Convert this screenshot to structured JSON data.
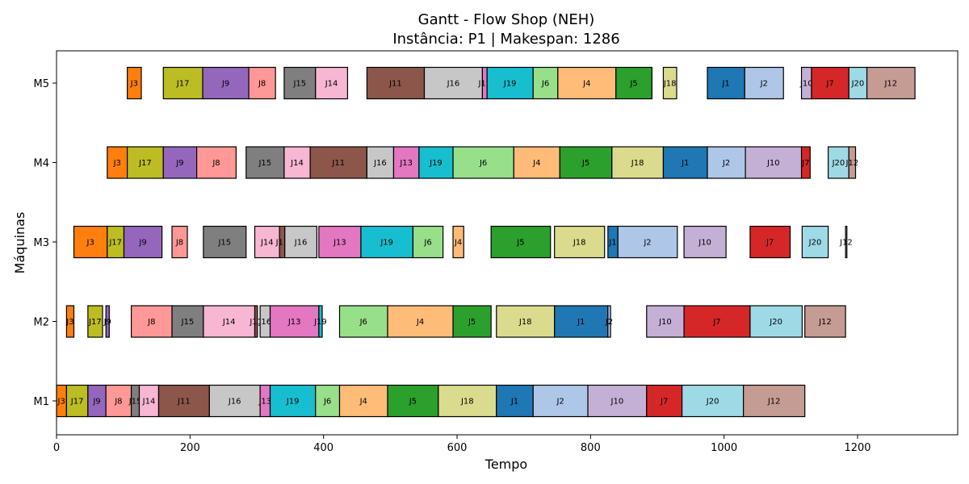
{
  "chart_data": {
    "type": "gantt",
    "title": "Gantt - Flow Shop (NEH)",
    "subtitle": "Instância: P1 | Makespan: 1286",
    "xlabel": "Tempo",
    "ylabel": "Máquinas",
    "xlim": [
      0,
      1350
    ],
    "x_ticks": [
      0,
      200,
      400,
      600,
      800,
      1000,
      1200
    ],
    "machines": [
      "M1",
      "M2",
      "M3",
      "M4",
      "M5"
    ],
    "job_colors": {
      "J1": "#1f77b4",
      "J2": "#aec7e8",
      "J3": "#ff7f0e",
      "J4": "#ffbb78",
      "J5": "#2ca02c",
      "J6": "#98df8a",
      "J7": "#d62728",
      "J8": "#ff9896",
      "J9": "#9467bd",
      "J10": "#c5b0d5",
      "J11": "#8c564b",
      "J12": "#c49c94",
      "J13": "#e377c2",
      "J14": "#f7b6d2",
      "J15": "#7f7f7f",
      "J16": "#c7c7c7",
      "J17": "#bcbd22",
      "J18": "#dbdb8d",
      "J19": "#17becf",
      "J20": "#9edae5"
    },
    "tasks": {
      "M1": [
        {
          "job": "J3",
          "start": 0,
          "end": 15
        },
        {
          "job": "J17",
          "start": 15,
          "end": 47
        },
        {
          "job": "J9",
          "start": 47,
          "end": 74
        },
        {
          "job": "J8",
          "start": 74,
          "end": 112
        },
        {
          "job": "J15",
          "start": 112,
          "end": 124
        },
        {
          "job": "J14",
          "start": 124,
          "end": 153
        },
        {
          "job": "J11",
          "start": 153,
          "end": 229
        },
        {
          "job": "J16",
          "start": 229,
          "end": 305
        },
        {
          "job": "J13",
          "start": 305,
          "end": 320
        },
        {
          "job": "J19",
          "start": 320,
          "end": 388
        },
        {
          "job": "J6",
          "start": 388,
          "end": 424
        },
        {
          "job": "J4",
          "start": 424,
          "end": 496
        },
        {
          "job": "J5",
          "start": 496,
          "end": 572
        },
        {
          "job": "J18",
          "start": 572,
          "end": 659
        },
        {
          "job": "J1",
          "start": 659,
          "end": 714
        },
        {
          "job": "J2",
          "start": 714,
          "end": 796
        },
        {
          "job": "J10",
          "start": 796,
          "end": 884
        },
        {
          "job": "J7",
          "start": 884,
          "end": 937
        },
        {
          "job": "J20",
          "start": 937,
          "end": 1029
        },
        {
          "job": "J12",
          "start": 1029,
          "end": 1121
        }
      ],
      "M2": [
        {
          "job": "J3",
          "start": 15,
          "end": 26
        },
        {
          "job": "J17",
          "start": 47,
          "end": 69
        },
        {
          "job": "J9",
          "start": 74,
          "end": 79
        },
        {
          "job": "J8",
          "start": 112,
          "end": 173
        },
        {
          "job": "J15",
          "start": 173,
          "end": 220
        },
        {
          "job": "J14",
          "start": 220,
          "end": 297
        },
        {
          "job": "J11",
          "start": 297,
          "end": 301
        },
        {
          "job": "J16",
          "start": 305,
          "end": 320
        },
        {
          "job": "J13",
          "start": 320,
          "end": 393
        },
        {
          "job": "J19",
          "start": 393,
          "end": 398
        },
        {
          "job": "J6",
          "start": 424,
          "end": 496
        },
        {
          "job": "J4",
          "start": 496,
          "end": 594
        },
        {
          "job": "J5",
          "start": 594,
          "end": 651
        },
        {
          "job": "J18",
          "start": 659,
          "end": 746
        },
        {
          "job": "J1",
          "start": 746,
          "end": 826
        },
        {
          "job": "J2",
          "start": 826,
          "end": 830
        },
        {
          "job": "J10",
          "start": 884,
          "end": 940
        },
        {
          "job": "J7",
          "start": 940,
          "end": 1039
        },
        {
          "job": "J20",
          "start": 1039,
          "end": 1117
        },
        {
          "job": "J12",
          "start": 1121,
          "end": 1182
        }
      ],
      "M3": [
        {
          "job": "J3",
          "start": 26,
          "end": 76
        },
        {
          "job": "J17",
          "start": 76,
          "end": 101
        },
        {
          "job": "J9",
          "start": 101,
          "end": 158
        },
        {
          "job": "J8",
          "start": 173,
          "end": 196
        },
        {
          "job": "J15",
          "start": 220,
          "end": 284
        },
        {
          "job": "J14",
          "start": 297,
          "end": 334
        },
        {
          "job": "J11",
          "start": 334,
          "end": 342
        },
        {
          "job": "J16",
          "start": 342,
          "end": 390
        },
        {
          "job": "J13",
          "start": 393,
          "end": 456
        },
        {
          "job": "J19",
          "start": 456,
          "end": 534
        },
        {
          "job": "J6",
          "start": 534,
          "end": 579
        },
        {
          "job": "J4",
          "start": 594,
          "end": 610
        },
        {
          "job": "J5",
          "start": 651,
          "end": 740
        },
        {
          "job": "J18",
          "start": 746,
          "end": 821
        },
        {
          "job": "J1",
          "start": 826,
          "end": 841
        },
        {
          "job": "J2",
          "start": 841,
          "end": 930
        },
        {
          "job": "J10",
          "start": 940,
          "end": 1003
        },
        {
          "job": "J7",
          "start": 1039,
          "end": 1099
        },
        {
          "job": "J20",
          "start": 1117,
          "end": 1156
        },
        {
          "job": "J12",
          "start": 1182,
          "end": 1184
        }
      ],
      "M4": [
        {
          "job": "J3",
          "start": 76,
          "end": 106
        },
        {
          "job": "J17",
          "start": 106,
          "end": 160
        },
        {
          "job": "J9",
          "start": 160,
          "end": 210
        },
        {
          "job": "J8",
          "start": 210,
          "end": 269
        },
        {
          "job": "J15",
          "start": 284,
          "end": 341
        },
        {
          "job": "J14",
          "start": 341,
          "end": 380
        },
        {
          "job": "J11",
          "start": 380,
          "end": 465
        },
        {
          "job": "J16",
          "start": 465,
          "end": 505
        },
        {
          "job": "J13",
          "start": 505,
          "end": 543
        },
        {
          "job": "J19",
          "start": 543,
          "end": 594
        },
        {
          "job": "J6",
          "start": 594,
          "end": 685
        },
        {
          "job": "J4",
          "start": 685,
          "end": 754
        },
        {
          "job": "J5",
          "start": 754,
          "end": 832
        },
        {
          "job": "J18",
          "start": 832,
          "end": 909
        },
        {
          "job": "J1",
          "start": 909,
          "end": 975
        },
        {
          "job": "J2",
          "start": 975,
          "end": 1032
        },
        {
          "job": "J10",
          "start": 1032,
          "end": 1116
        },
        {
          "job": "J7",
          "start": 1116,
          "end": 1129
        },
        {
          "job": "J20",
          "start": 1156,
          "end": 1187
        },
        {
          "job": "J12",
          "start": 1187,
          "end": 1197
        }
      ],
      "M5": [
        {
          "job": "J3",
          "start": 106,
          "end": 127
        },
        {
          "job": "J17",
          "start": 160,
          "end": 219
        },
        {
          "job": "J9",
          "start": 219,
          "end": 288
        },
        {
          "job": "J8",
          "start": 288,
          "end": 328
        },
        {
          "job": "J15",
          "start": 341,
          "end": 388
        },
        {
          "job": "J14",
          "start": 388,
          "end": 436
        },
        {
          "job": "J11",
          "start": 465,
          "end": 551
        },
        {
          "job": "J16",
          "start": 551,
          "end": 638
        },
        {
          "job": "J13",
          "start": 638,
          "end": 645
        },
        {
          "job": "J19",
          "start": 645,
          "end": 714
        },
        {
          "job": "J6",
          "start": 714,
          "end": 751
        },
        {
          "job": "J4",
          "start": 751,
          "end": 838
        },
        {
          "job": "J5",
          "start": 838,
          "end": 892
        },
        {
          "job": "J18",
          "start": 909,
          "end": 929
        },
        {
          "job": "J1",
          "start": 975,
          "end": 1031
        },
        {
          "job": "J2",
          "start": 1031,
          "end": 1089
        },
        {
          "job": "J10",
          "start": 1116,
          "end": 1131
        },
        {
          "job": "J7",
          "start": 1131,
          "end": 1187
        },
        {
          "job": "J20",
          "start": 1187,
          "end": 1214
        },
        {
          "job": "J12",
          "start": 1214,
          "end": 1286
        }
      ]
    }
  }
}
